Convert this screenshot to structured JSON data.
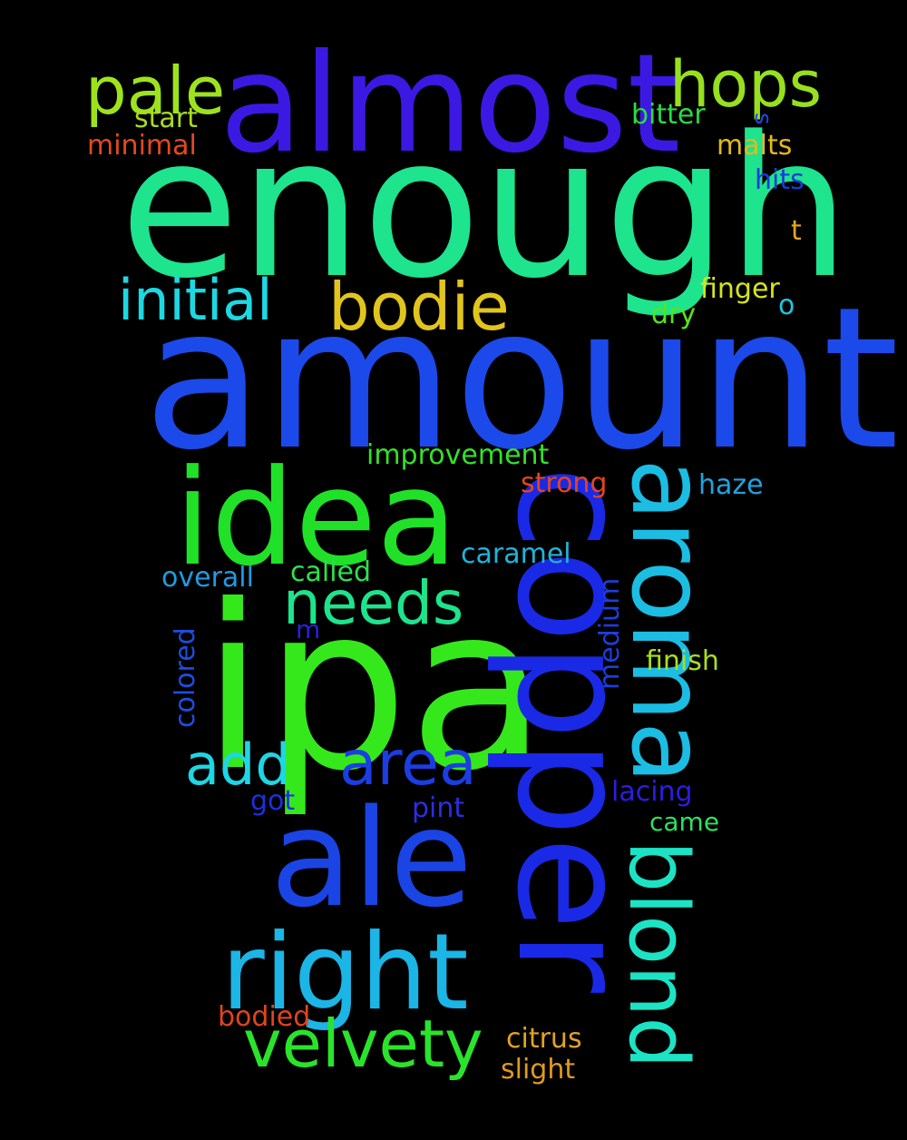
{
  "words": {
    "enough": {
      "text": "enough",
      "color": "#1de48d"
    },
    "amount": {
      "text": "amount",
      "color": "#1c49e9"
    },
    "ipa": {
      "text": "ipa",
      "color": "#35e81c"
    },
    "copper": {
      "text": "copper",
      "color": "#1a29e6"
    },
    "almost": {
      "text": "almost",
      "color": "#3c19e2"
    },
    "idea": {
      "text": "idea",
      "color": "#20e128"
    },
    "ale": {
      "text": "ale",
      "color": "#1b44e5"
    },
    "aroma": {
      "text": "aroma",
      "color": "#1bbde3"
    },
    "right": {
      "text": "right",
      "color": "#1bb5e6"
    },
    "blond": {
      "text": "blond",
      "color": "#1ce3c4"
    },
    "velvety": {
      "text": "velvety",
      "color": "#2ae42b"
    },
    "pale": {
      "text": "pale",
      "color": "#9de31d"
    },
    "hops": {
      "text": "hops",
      "color": "#97e01d"
    },
    "bodie": {
      "text": "bodie",
      "color": "#e1c51d"
    },
    "initial": {
      "text": "initial",
      "color": "#1dd8e3"
    },
    "needs": {
      "text": "needs",
      "color": "#1de48c"
    },
    "area": {
      "text": "area",
      "color": "#1b3de2"
    },
    "add": {
      "text": "add",
      "color": "#1ed6e4"
    },
    "start": {
      "text": "start",
      "color": "#a9dc1c"
    },
    "minimal": {
      "text": "minimal",
      "color": "#e4491d"
    },
    "bitter": {
      "text": "bitter",
      "color": "#2bdb46"
    },
    "malts": {
      "text": "malts",
      "color": "#e4b81d"
    },
    "hits": {
      "text": "hits",
      "color": "#1d3ad9"
    },
    "s": {
      "text": "s",
      "color": "#1d48e0"
    },
    "t": {
      "text": "t",
      "color": "#e4a71b"
    },
    "finger": {
      "text": "finger",
      "color": "#d6e41d"
    },
    "o": {
      "text": "o",
      "color": "#1cc6e0"
    },
    "dry": {
      "text": "dry",
      "color": "#57e31d"
    },
    "improvement": {
      "text": "improvement",
      "color": "#35e02a"
    },
    "strong": {
      "text": "strong",
      "color": "#e4451d"
    },
    "haze": {
      "text": "haze",
      "color": "#1fa3e0"
    },
    "caramel": {
      "text": "caramel",
      "color": "#1db5dc"
    },
    "overall": {
      "text": "overall",
      "color": "#1f9be0"
    },
    "called": {
      "text": "called",
      "color": "#2ee04f"
    },
    "m": {
      "text": "m",
      "color": "#2b20dc"
    },
    "colored": {
      "text": "colored",
      "color": "#1d4ee0"
    },
    "medium": {
      "text": "medium",
      "color": "#1c3ee0"
    },
    "finish": {
      "text": "finish",
      "color": "#a8e01d"
    },
    "lacing": {
      "text": "lacing",
      "color": "#2c1de0"
    },
    "came": {
      "text": "came",
      "color": "#2ee05e"
    },
    "got": {
      "text": "got",
      "color": "#1d2fe0"
    },
    "pint": {
      "text": "pint",
      "color": "#2c2ee0"
    },
    "bodied": {
      "text": "bodied",
      "color": "#e0441d"
    },
    "citrus": {
      "text": "citrus",
      "color": "#e0a41d"
    },
    "slight": {
      "text": "slight",
      "color": "#e09a1d"
    }
  }
}
